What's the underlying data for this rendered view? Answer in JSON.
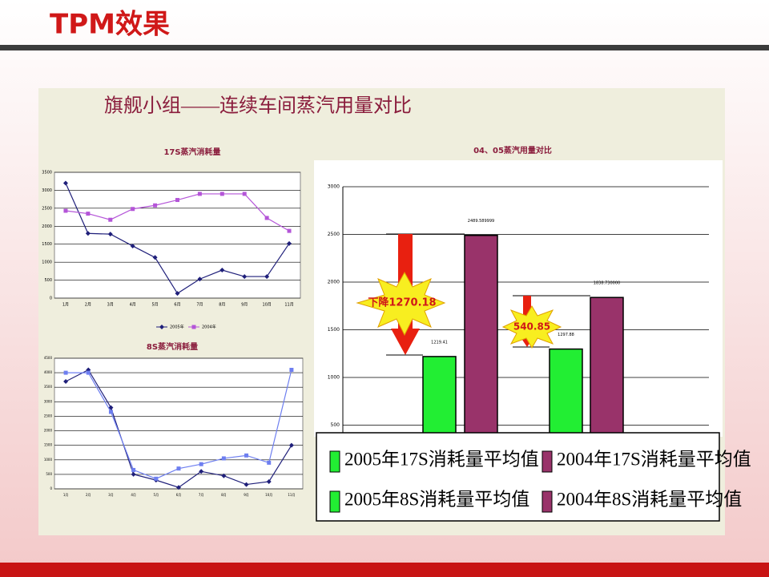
{
  "slide": {
    "title": "TPM效果",
    "heading": "旗舰小组——连续车间蒸汽用量对比"
  },
  "chart_data": [
    {
      "type": "line",
      "title": "17S蒸汽消耗量",
      "categories": [
        "1月",
        "2月",
        "3月",
        "4月",
        "5月",
        "6月",
        "7月",
        "8月",
        "9月",
        "10月",
        "11月"
      ],
      "series": [
        {
          "name": "2005年",
          "color": "#1f1f7a",
          "marker": "diamond",
          "values": [
            3200,
            1800,
            1780,
            1450,
            1130,
            130,
            530,
            780,
            600,
            600,
            1520
          ]
        },
        {
          "name": "2004年",
          "color": "#b455d8",
          "marker": "square",
          "values": [
            2430,
            2350,
            2180,
            2480,
            2580,
            2730,
            2900,
            2900,
            2900,
            2230,
            1870
          ]
        }
      ],
      "ylim": [
        0,
        3500
      ],
      "yticks": [
        0,
        500,
        1000,
        1500,
        2000,
        2500,
        3000,
        3500
      ],
      "grid": true
    },
    {
      "type": "line",
      "title": "8S蒸汽消耗量",
      "categories": [
        "1月",
        "2月",
        "3月",
        "4月",
        "5月",
        "6月",
        "7月",
        "8月",
        "9月",
        "10月",
        "11月"
      ],
      "series": [
        {
          "name": "2005年",
          "color": "#1f1f7a",
          "marker": "diamond",
          "values": [
            3700,
            4100,
            2800,
            500,
            300,
            50,
            600,
            450,
            150,
            250,
            1500
          ]
        },
        {
          "name": "2004年",
          "color": "#6e7ff0",
          "marker": "square",
          "values": [
            4000,
            4000,
            2650,
            650,
            350,
            700,
            850,
            1050,
            1150,
            900,
            4100
          ]
        }
      ],
      "ylim": [
        0,
        4500
      ],
      "yticks": [
        0,
        500,
        1000,
        1500,
        2000,
        2500,
        3000,
        3500,
        4000,
        4500
      ],
      "grid": true
    },
    {
      "type": "bar",
      "title": "04、05蒸汽用量对比",
      "series": [
        {
          "name": "2005年17S消耗量平均值",
          "color": "#22ee33",
          "values": [
            1219.41,
            null
          ],
          "value_labels": [
            "1219.41",
            null
          ]
        },
        {
          "name": "2004年17S消耗量平均值",
          "color": "#99336a",
          "values": [
            2489.589999,
            null
          ],
          "value_labels": [
            "2489.589999",
            null
          ]
        },
        {
          "name": "2005年8S消耗量平均值",
          "color": "#22ee33",
          "values": [
            null,
            1297.88
          ],
          "value_labels": [
            null,
            "1297.88"
          ]
        },
        {
          "name": "2004年8S消耗量平均值",
          "color": "#99336a",
          "values": [
            null,
            1838.73
          ],
          "value_labels": [
            null,
            "1838.730000"
          ]
        }
      ],
      "annotations": [
        "下降1270.18",
        "540.85"
      ],
      "ylim": [
        0,
        3000
      ],
      "yticks": [
        500,
        1000,
        1500,
        2000,
        2500,
        3000
      ],
      "grid": true
    }
  ]
}
